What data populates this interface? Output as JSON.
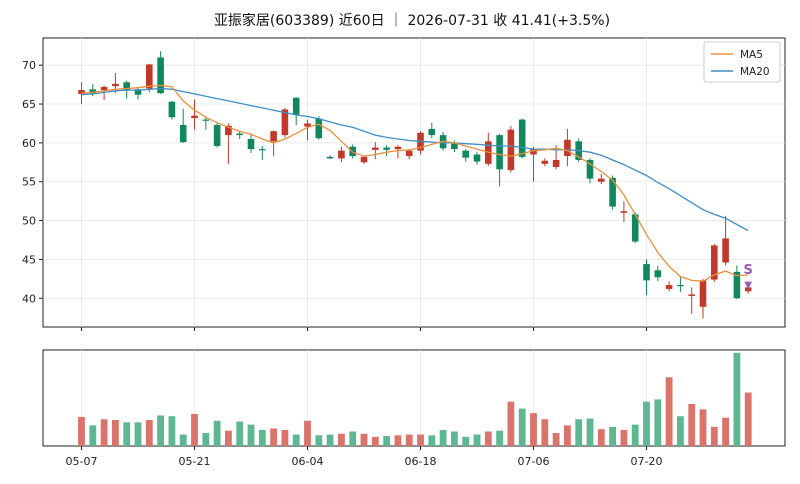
{
  "title": "亚振家居(603389) 近60日 ｜ 2026-07-31 收 41.41(+3.5%)",
  "colors": {
    "up": "#c0392b",
    "down": "#11875d",
    "up_vol": "#d9736b",
    "down_vol": "#5db891",
    "ma5": "#ec8f3d",
    "ma20": "#3f8ec6",
    "marker": "#9b59b6",
    "grid": "#e6e6e6"
  },
  "legend": {
    "ma5_label": "MA5",
    "ma20_label": "MA20",
    "position": "top-right"
  },
  "marker": {
    "text": "S",
    "arrow": "▼"
  },
  "chart_data": {
    "type": "candlestick",
    "price_axis": {
      "ylim": [
        36.3,
        73.5
      ],
      "ticks": [
        "40",
        "45",
        "50",
        "55",
        "60",
        "65",
        "70"
      ]
    },
    "x_ticks": [
      {
        "index": 0,
        "label": "05-07"
      },
      {
        "index": 10,
        "label": "05-21"
      },
      {
        "index": 20,
        "label": "06-04"
      },
      {
        "index": 30,
        "label": "06-18"
      },
      {
        "index": 40,
        "label": "07-06"
      },
      {
        "index": 50,
        "label": "07-20"
      }
    ],
    "ohlc": [
      [
        66.3,
        66.8,
        65.0,
        67.8
      ],
      [
        66.9,
        66.3,
        66.0,
        67.6
      ],
      [
        66.8,
        67.2,
        65.5,
        67.4
      ],
      [
        67.3,
        67.6,
        66.4,
        69.0
      ],
      [
        67.8,
        66.8,
        65.7,
        68.0
      ],
      [
        66.9,
        66.2,
        65.6,
        67.2
      ],
      [
        67.0,
        70.1,
        66.5,
        70.2
      ],
      [
        71.0,
        66.4,
        66.3,
        71.8
      ],
      [
        65.3,
        63.3,
        63.0,
        65.4
      ],
      [
        62.3,
        60.1,
        60.0,
        64.4
      ],
      [
        63.2,
        63.5,
        61.7,
        65.6
      ],
      [
        63.0,
        62.9,
        61.7,
        63.2
      ],
      [
        62.3,
        59.6,
        59.4,
        62.7
      ],
      [
        61.0,
        62.2,
        57.3,
        62.5
      ],
      [
        61.2,
        61.0,
        60.5,
        61.5
      ],
      [
        60.5,
        59.2,
        58.7,
        61.2
      ],
      [
        59.2,
        59.1,
        57.8,
        59.6
      ],
      [
        60.2,
        61.5,
        58.3,
        61.6
      ],
      [
        61.0,
        64.3,
        60.7,
        64.5
      ],
      [
        65.8,
        63.6,
        62.3,
        65.9
      ],
      [
        62.1,
        62.5,
        60.3,
        63.0
      ],
      [
        63.1,
        60.6,
        60.4,
        63.4
      ],
      [
        58.2,
        58.0,
        57.9,
        58.4
      ],
      [
        58.0,
        59.0,
        57.5,
        59.5
      ],
      [
        59.5,
        58.3,
        58.0,
        59.8
      ],
      [
        57.5,
        58.2,
        57.3,
        58.3
      ],
      [
        59.1,
        59.4,
        57.9,
        60.1
      ],
      [
        59.4,
        59.1,
        58.3,
        59.7
      ],
      [
        59.2,
        59.5,
        58.0,
        59.7
      ],
      [
        58.3,
        59.0,
        57.9,
        59.2
      ],
      [
        59.0,
        61.3,
        58.5,
        61.5
      ],
      [
        61.8,
        61.0,
        60.6,
        62.6
      ],
      [
        61.0,
        59.3,
        59.0,
        61.4
      ],
      [
        59.9,
        59.2,
        58.8,
        60.3
      ],
      [
        59.0,
        58.1,
        57.6,
        59.2
      ],
      [
        58.5,
        57.6,
        57.2,
        58.8
      ],
      [
        57.3,
        60.2,
        57.0,
        61.3
      ],
      [
        61.0,
        56.6,
        54.4,
        61.2
      ],
      [
        56.5,
        61.7,
        56.2,
        62.2
      ],
      [
        63.0,
        58.2,
        58.0,
        63.1
      ],
      [
        58.5,
        59.2,
        55.0,
        59.5
      ],
      [
        57.3,
        57.7,
        57.0,
        58.0
      ],
      [
        56.9,
        57.8,
        56.6,
        59.7
      ],
      [
        58.3,
        60.4,
        57.0,
        61.8
      ],
      [
        60.2,
        57.8,
        57.5,
        60.6
      ],
      [
        57.8,
        55.4,
        54.8,
        58.0
      ],
      [
        55.0,
        55.4,
        54.7,
        56.0
      ],
      [
        55.5,
        51.8,
        51.4,
        55.8
      ],
      [
        51.0,
        51.2,
        49.8,
        52.5
      ],
      [
        50.8,
        47.3,
        47.1,
        51.1
      ],
      [
        44.4,
        42.3,
        40.4,
        45.0
      ],
      [
        43.6,
        42.7,
        42.2,
        44.2
      ],
      [
        41.2,
        41.7,
        40.9,
        42.2
      ],
      [
        41.7,
        41.6,
        40.8,
        42.8
      ],
      [
        40.3,
        40.5,
        38.0,
        41.4
      ],
      [
        38.9,
        42.3,
        37.4,
        42.5
      ],
      [
        42.4,
        46.8,
        42.1,
        47.0
      ],
      [
        44.6,
        47.7,
        44.2,
        50.6
      ],
      [
        43.4,
        40.0,
        39.9,
        44.2
      ],
      [
        40.9,
        41.4,
        40.6,
        41.6
      ]
    ],
    "ma5": [
      66.4,
      66.5,
      66.7,
      66.9,
      67.0,
      67.1,
      67.3,
      67.4,
      67.2,
      65.4,
      64.2,
      63.3,
      62.6,
      62.0,
      61.5,
      61.1,
      60.5,
      60.0,
      60.5,
      61.2,
      62.0,
      62.4,
      61.6,
      60.2,
      58.8,
      58.3,
      58.5,
      58.8,
      59.0,
      59.1,
      59.4,
      59.8,
      60.2,
      60.0,
      59.6,
      59.2,
      58.8,
      58.5,
      58.3,
      58.6,
      59.0,
      59.1,
      59.3,
      59.0,
      58.2,
      57.3,
      56.3,
      55.2,
      53.3,
      50.8,
      48.2,
      45.9,
      44.1,
      42.8,
      42.3,
      42.2,
      43.0,
      43.5,
      42.9,
      43.0
    ],
    "ma20": [
      66.2,
      66.3,
      66.5,
      66.7,
      66.8,
      66.8,
      66.9,
      67.0,
      66.9,
      66.6,
      66.3,
      66.0,
      65.7,
      65.4,
      65.1,
      64.8,
      64.5,
      64.2,
      63.9,
      63.6,
      63.4,
      63.1,
      62.7,
      62.3,
      62.0,
      61.5,
      61.0,
      60.7,
      60.5,
      60.3,
      60.2,
      60.1,
      60.0,
      60.0,
      59.9,
      59.8,
      59.7,
      59.6,
      59.6,
      59.4,
      59.2,
      59.2,
      59.1,
      59.1,
      59.0,
      58.8,
      58.4,
      57.8,
      57.2,
      56.5,
      55.8,
      54.9,
      54.1,
      53.2,
      52.3,
      51.4,
      50.8,
      50.3,
      49.5,
      48.7
    ],
    "volume": [
      38,
      27,
      35,
      34,
      31,
      31,
      34,
      40,
      39,
      15,
      42,
      17,
      33,
      20,
      32,
      28,
      21,
      23,
      21,
      15,
      33,
      14,
      15,
      16,
      19,
      16,
      12,
      13,
      14,
      15,
      15,
      14,
      21,
      19,
      12,
      15,
      19,
      20,
      58,
      49,
      43,
      35,
      17,
      27,
      35,
      36,
      22,
      25,
      21,
      28,
      58,
      61,
      90,
      39,
      55,
      48,
      25,
      37,
      122,
      70
    ]
  }
}
